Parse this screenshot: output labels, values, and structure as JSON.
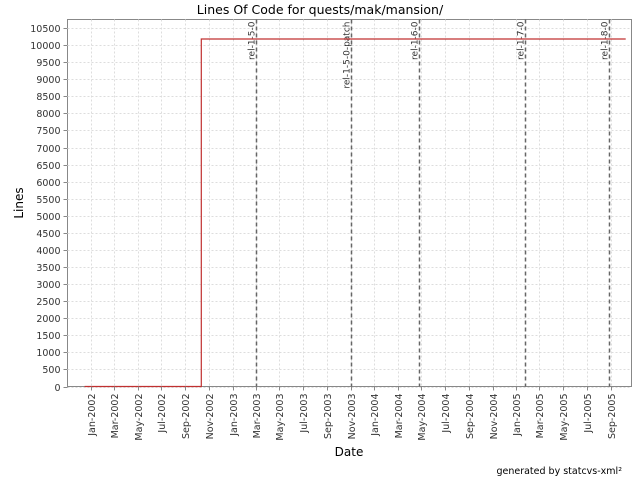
{
  "chart_data": {
    "type": "line",
    "title": "Lines Of Code for quests/mak/mansion/",
    "xlabel": "Date",
    "ylabel": "Lines",
    "x_range": [
      "2001-11-01",
      "2005-10-25"
    ],
    "ylim": [
      0,
      10750
    ],
    "y_ticks": [
      0,
      500,
      1000,
      1500,
      2000,
      2500,
      3000,
      3500,
      4000,
      4500,
      5000,
      5500,
      6000,
      6500,
      7000,
      7500,
      8000,
      8500,
      9000,
      9500,
      10000,
      10500
    ],
    "x_ticks": [
      {
        "date": "2002-01-01",
        "label": "Jan-2002"
      },
      {
        "date": "2002-03-01",
        "label": "Mar-2002"
      },
      {
        "date": "2002-05-01",
        "label": "May-2002"
      },
      {
        "date": "2002-07-01",
        "label": "Jul-2002"
      },
      {
        "date": "2002-09-01",
        "label": "Sep-2002"
      },
      {
        "date": "2002-11-01",
        "label": "Nov-2002"
      },
      {
        "date": "2003-01-01",
        "label": "Jan-2003"
      },
      {
        "date": "2003-03-01",
        "label": "Mar-2003"
      },
      {
        "date": "2003-05-01",
        "label": "May-2003"
      },
      {
        "date": "2003-07-01",
        "label": "Jul-2003"
      },
      {
        "date": "2003-09-01",
        "label": "Sep-2003"
      },
      {
        "date": "2003-11-01",
        "label": "Nov-2003"
      },
      {
        "date": "2004-01-01",
        "label": "Jan-2004"
      },
      {
        "date": "2004-03-01",
        "label": "Mar-2004"
      },
      {
        "date": "2004-05-01",
        "label": "May-2004"
      },
      {
        "date": "2004-07-01",
        "label": "Jul-2004"
      },
      {
        "date": "2004-09-01",
        "label": "Sep-2004"
      },
      {
        "date": "2004-11-01",
        "label": "Nov-2004"
      },
      {
        "date": "2005-01-01",
        "label": "Jan-2005"
      },
      {
        "date": "2005-03-01",
        "label": "Mar-2005"
      },
      {
        "date": "2005-05-01",
        "label": "May-2005"
      },
      {
        "date": "2005-07-01",
        "label": "Jul-2005"
      },
      {
        "date": "2005-09-01",
        "label": "Sep-2005"
      }
    ],
    "series": [
      {
        "color": "#c03030",
        "step": true,
        "points": [
          {
            "x": "2001-12-15",
            "y": 0
          },
          {
            "x": "2002-10-12",
            "y": 0
          },
          {
            "x": "2002-10-12",
            "y": 10180
          },
          {
            "x": "2005-10-10",
            "y": 10180
          }
        ]
      }
    ],
    "markers": [
      {
        "date": "2003-03-01",
        "label": "rel-1-5-0"
      },
      {
        "date": "2003-11-01",
        "label": "rel-1-5-0-patch"
      },
      {
        "date": "2004-04-25",
        "label": "rel-1-6-0"
      },
      {
        "date": "2005-01-23",
        "label": "rel-1-7-0"
      },
      {
        "date": "2005-08-28",
        "label": "rel-1-8-0"
      }
    ],
    "grid": true,
    "credit": "generated by statcvs-xml²"
  }
}
